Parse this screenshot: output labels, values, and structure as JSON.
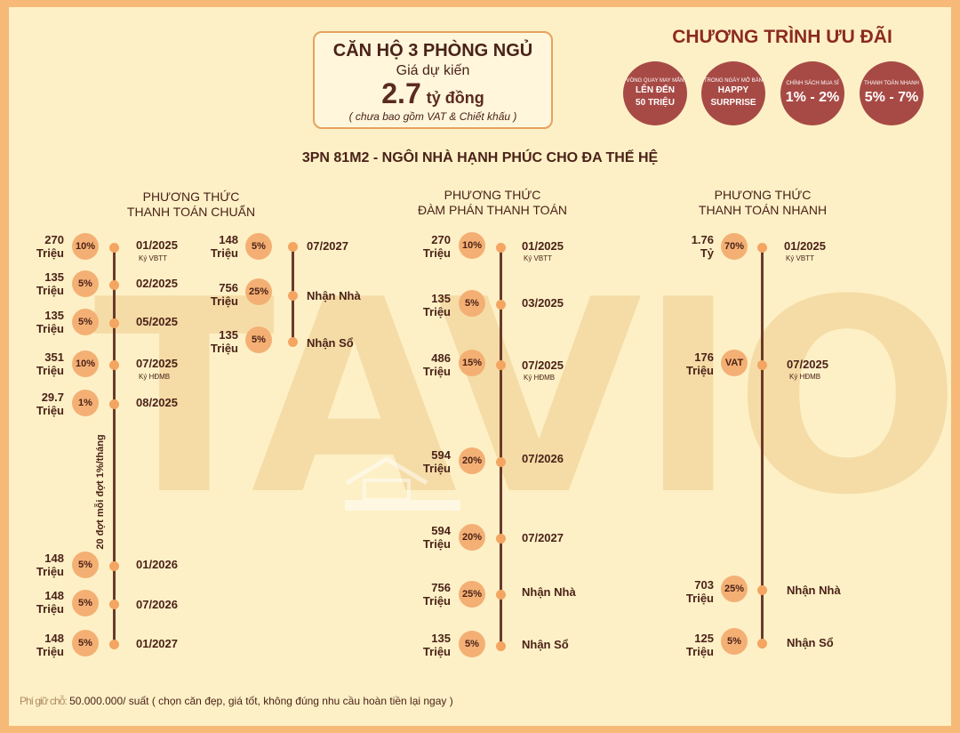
{
  "watermark": "TAVIO",
  "price_box": {
    "title": "CĂN HỘ 3 PHÒNG NGỦ",
    "subtitle": "Giá dự kiến",
    "price": "2.7",
    "unit": "tỷ đồng",
    "note": "( chưa bao gồm VAT & Chiết khấu )"
  },
  "promo": {
    "title": "CHƯƠNG TRÌNH ƯU ĐÃI",
    "items": [
      {
        "small": "VÒNG QUAY MAY MẮN",
        "line1": "LÊN ĐẾN",
        "line2": "50 TRIỆU"
      },
      {
        "small": "TRONG NGÀY MỞ BÁN",
        "line1": "HAPPY",
        "line2": "SURPRISE"
      },
      {
        "small": "CHÍNH SÁCH MUA SỈ",
        "big": "1% - 2%"
      },
      {
        "small": "THANH TOÁN NHANH",
        "big": "5% - 7%"
      }
    ]
  },
  "main_title": "3PN 81M2 - NGÔI NHÀ HẠNH PHÚC CHO ĐA THẾ HỆ",
  "columns": {
    "c1": {
      "line1": "PHƯƠNG THỨC",
      "line2": "THANH TOÁN CHUẨN"
    },
    "c2": {
      "line1": "PHƯƠNG THỨC",
      "line2": "ĐÀM PHÁN THANH TOÁN"
    },
    "c3": {
      "line1": "PHƯƠNG THỨC",
      "line2": "THANH TOÁN NHANH"
    }
  },
  "standard": {
    "rows": [
      {
        "amount": "270",
        "unit": "Triệu",
        "pct": "10%",
        "date": "01/2025",
        "ky": "Ký VBTT"
      },
      {
        "amount": "135",
        "unit": "Triệu",
        "pct": "5%",
        "date": "02/2025"
      },
      {
        "amount": "135",
        "unit": "Triệu",
        "pct": "5%",
        "date": "05/2025"
      },
      {
        "amount": "351",
        "unit": "Triệu",
        "pct": "10%",
        "date": "07/2025",
        "ky": "Ký HĐMB"
      },
      {
        "amount": "29.7",
        "unit": "Triệu",
        "pct": "1%",
        "date": "08/2025"
      },
      {
        "amount": "148",
        "unit": "Triệu",
        "pct": "5%",
        "date": "01/2026"
      },
      {
        "amount": "148",
        "unit": "Triệu",
        "pct": "5%",
        "date": "07/2026"
      },
      {
        "amount": "148",
        "unit": "Triệu",
        "pct": "5%",
        "date": "01/2027"
      }
    ],
    "rotated_note": "20 đợt mỗi đợt 1%/tháng",
    "rows2": [
      {
        "amount": "148",
        "unit": "Triệu",
        "pct": "5%",
        "date": "07/2027"
      },
      {
        "amount": "756",
        "unit": "Triệu",
        "pct": "25%",
        "date": "Nhận Nhà"
      },
      {
        "amount": "135",
        "unit": "Triệu",
        "pct": "5%",
        "date": "Nhận Sổ"
      }
    ]
  },
  "negotiated": {
    "rows": [
      {
        "amount": "270",
        "unit": "Triệu",
        "pct": "10%",
        "date": "01/2025",
        "ky": "Ký VBTT"
      },
      {
        "amount": "135",
        "unit": "Triệu",
        "pct": "5%",
        "date": "03/2025"
      },
      {
        "amount": "486",
        "unit": "Triệu",
        "pct": "15%",
        "date": "07/2025",
        "ky": "Ký HĐMB"
      },
      {
        "amount": "594",
        "unit": "Triệu",
        "pct": "20%",
        "date": "07/2026"
      },
      {
        "amount": "594",
        "unit": "Triệu",
        "pct": "20%",
        "date": "07/2027"
      },
      {
        "amount": "756",
        "unit": "Triệu",
        "pct": "25%",
        "date": "Nhận Nhà"
      },
      {
        "amount": "135",
        "unit": "Triệu",
        "pct": "5%",
        "date": "Nhận Sổ"
      }
    ]
  },
  "fast": {
    "rows": [
      {
        "amount": "1.76",
        "unit": "Tỷ",
        "pct": "70%",
        "date": "01/2025",
        "ky": "Ký VBTT"
      },
      {
        "amount": "176",
        "unit": "Triệu",
        "pct": "VAT",
        "date": "07/2025",
        "ky": "Ký HĐMB"
      },
      {
        "amount": "703",
        "unit": "Triệu",
        "pct": "25%",
        "date": "Nhận Nhà"
      },
      {
        "amount": "125",
        "unit": "Triệu",
        "pct": "5%",
        "date": "Nhận Sổ"
      }
    ]
  },
  "footer": {
    "label": "Phí giữ chỗ:",
    "text": "50.000.000/ suất ( chọn căn đẹp, giá tốt, không đúng nhu cầu hoàn tiền lại ngay )"
  }
}
